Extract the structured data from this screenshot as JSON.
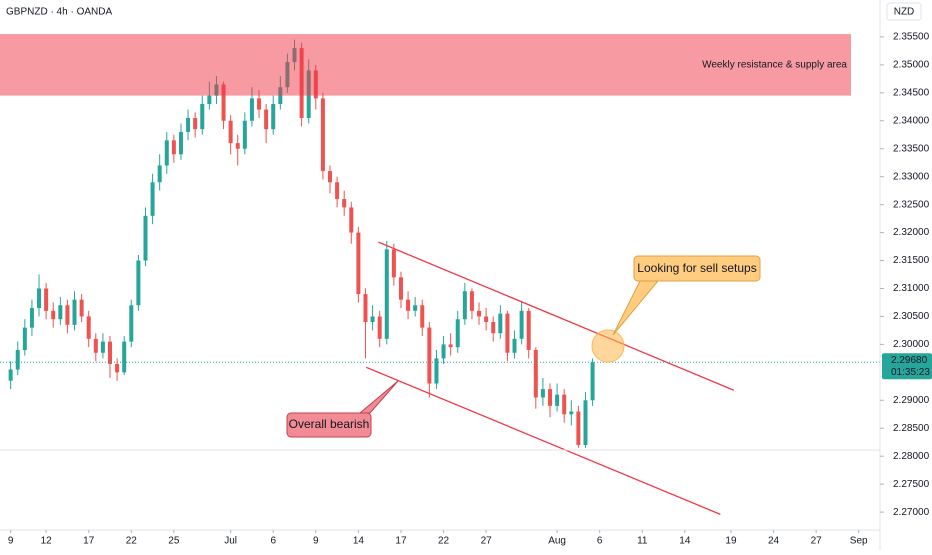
{
  "chart_data": {
    "type": "candlestick",
    "title": "GBPNZD · 4h · OANDA",
    "currency": "NZD",
    "up_color": "#26a69a",
    "down_color": "#ef5350",
    "grid": false,
    "xlim": [
      -1.5,
      122.5
    ],
    "xticks": [
      {
        "value": 0,
        "label": "9"
      },
      {
        "value": 5,
        "label": "12"
      },
      {
        "value": 11,
        "label": "17"
      },
      {
        "value": 17,
        "label": "22"
      },
      {
        "value": 23,
        "label": "25"
      },
      {
        "value": 31,
        "label": "Jul"
      },
      {
        "value": 37,
        "label": "6"
      },
      {
        "value": 43,
        "label": "9"
      },
      {
        "value": 49,
        "label": "14"
      },
      {
        "value": 55,
        "label": "17"
      },
      {
        "value": 61,
        "label": "22"
      },
      {
        "value": 67,
        "label": "27"
      },
      {
        "value": 77,
        "label": "Aug"
      },
      {
        "value": 83,
        "label": "6"
      },
      {
        "value": 89,
        "label": "11"
      },
      {
        "value": 95,
        "label": "14"
      },
      {
        "value": 101.5,
        "label": "19"
      },
      {
        "value": 107.5,
        "label": "24"
      },
      {
        "value": 113.5,
        "label": "27"
      },
      {
        "value": 119.5,
        "label": "Sep"
      }
    ],
    "ylim": [
      2.2668,
      2.3616
    ],
    "yticks": [
      {
        "value": 2.355,
        "label": "2.35500"
      },
      {
        "value": 2.35,
        "label": "2.35000"
      },
      {
        "value": 2.345,
        "label": "2.34500"
      },
      {
        "value": 2.34,
        "label": "2.34000"
      },
      {
        "value": 2.335,
        "label": "2.33500"
      },
      {
        "value": 2.33,
        "label": "2.33000"
      },
      {
        "value": 2.325,
        "label": "2.32500"
      },
      {
        "value": 2.32,
        "label": "2.32000"
      },
      {
        "value": 2.315,
        "label": "2.31500"
      },
      {
        "value": 2.31,
        "label": "2.31000"
      },
      {
        "value": 2.305,
        "label": "2.30500"
      },
      {
        "value": 2.3,
        "label": "2.30000"
      },
      {
        "value": 2.29,
        "label": "2.29000"
      },
      {
        "value": 2.285,
        "label": "2.28500"
      },
      {
        "value": 2.28,
        "label": "2.28000"
      },
      {
        "value": 2.275,
        "label": "2.27500"
      },
      {
        "value": 2.27,
        "label": "2.27000"
      }
    ],
    "open": [
      2.2935,
      2.2955,
      2.299,
      2.303,
      2.3065,
      2.31,
      2.306,
      2.3045,
      2.307,
      2.3035,
      2.308,
      2.305,
      2.301,
      2.2985,
      2.3005,
      2.2965,
      2.295,
      2.3005,
      2.307,
      2.315,
      2.323,
      2.329,
      2.332,
      2.3365,
      2.334,
      2.338,
      2.3405,
      2.3385,
      2.343,
      2.3445,
      2.3465,
      2.34,
      2.336,
      2.335,
      2.34,
      2.344,
      2.342,
      2.3385,
      2.343,
      2.346,
      2.3505,
      2.353,
      2.3405,
      2.349,
      2.344,
      2.331,
      2.329,
      2.326,
      2.3245,
      2.32,
      2.309,
      2.304,
      2.305,
      2.301,
      2.317,
      2.312,
      2.308,
      2.306,
      2.307,
      2.303,
      2.293,
      2.2975,
      2.3,
      2.2995,
      2.3045,
      2.3095,
      2.306,
      2.305,
      2.304,
      2.302,
      2.3055,
      2.2985,
      2.301,
      2.306,
      2.299,
      2.2905,
      2.292,
      2.289,
      2.291,
      2.2875,
      2.288,
      2.282,
      2.29
    ],
    "high": [
      2.297,
      2.3005,
      2.3045,
      2.308,
      2.3125,
      2.311,
      2.3075,
      2.3085,
      2.308,
      2.3095,
      2.309,
      2.306,
      2.302,
      2.302,
      2.3015,
      2.2975,
      2.3015,
      2.308,
      2.316,
      2.3245,
      2.3305,
      2.334,
      2.338,
      2.3375,
      2.3395,
      2.342,
      2.3415,
      2.3445,
      2.347,
      2.348,
      2.347,
      2.341,
      2.3375,
      2.3415,
      2.346,
      2.3455,
      2.343,
      2.3445,
      2.348,
      2.352,
      2.3545,
      2.354,
      2.351,
      2.35,
      2.345,
      2.332,
      2.33,
      2.3275,
      2.3255,
      2.321,
      2.31,
      2.307,
      2.306,
      2.3185,
      2.318,
      2.313,
      2.3095,
      2.3085,
      2.308,
      2.304,
      2.299,
      2.3015,
      2.302,
      2.306,
      2.311,
      2.31,
      2.3075,
      2.3065,
      2.305,
      2.307,
      2.306,
      2.3025,
      2.3075,
      2.3065,
      2.2995,
      2.294,
      2.293,
      2.293,
      2.292,
      2.29,
      2.289,
      2.2915,
      2.2975
    ],
    "low": [
      2.292,
      2.2945,
      2.298,
      2.3015,
      2.305,
      2.3045,
      2.303,
      2.3035,
      2.302,
      2.3025,
      2.304,
      2.2995,
      2.297,
      2.2975,
      2.294,
      2.2935,
      2.2945,
      2.2995,
      2.306,
      2.314,
      2.3215,
      2.3275,
      2.3305,
      2.3325,
      2.333,
      2.3365,
      2.337,
      2.3375,
      2.342,
      2.343,
      2.3385,
      2.334,
      2.332,
      2.334,
      2.339,
      2.3405,
      2.336,
      2.3375,
      2.342,
      2.345,
      2.349,
      2.339,
      2.3395,
      2.342,
      2.3295,
      2.327,
      2.3245,
      2.323,
      2.318,
      2.3075,
      2.2975,
      2.3025,
      2.2995,
      2.3,
      2.3105,
      2.3065,
      2.3045,
      2.305,
      2.3015,
      2.2905,
      2.292,
      2.2965,
      2.298,
      2.2985,
      2.3035,
      2.3045,
      2.3035,
      2.3025,
      2.3005,
      2.301,
      2.297,
      2.2975,
      2.3,
      2.2975,
      2.2885,
      2.289,
      2.287,
      2.288,
      2.286,
      2.2855,
      2.2815,
      2.2815,
      2.289
    ],
    "close": [
      2.2955,
      2.299,
      2.303,
      2.3065,
      2.31,
      2.306,
      2.3045,
      2.307,
      2.3035,
      2.308,
      2.305,
      2.301,
      2.2985,
      2.3005,
      2.2965,
      2.295,
      2.3005,
      2.307,
      2.315,
      2.323,
      2.329,
      2.332,
      2.3365,
      2.334,
      2.338,
      2.3405,
      2.3385,
      2.343,
      2.3445,
      2.3465,
      2.34,
      2.336,
      2.335,
      2.34,
      2.344,
      2.342,
      2.3385,
      2.343,
      2.346,
      2.3505,
      2.353,
      2.3405,
      2.349,
      2.344,
      2.331,
      2.329,
      2.326,
      2.3245,
      2.32,
      2.309,
      2.304,
      2.305,
      2.301,
      2.317,
      2.312,
      2.308,
      2.306,
      2.307,
      2.303,
      2.293,
      2.2975,
      2.3,
      2.2995,
      2.3045,
      2.3095,
      2.306,
      2.305,
      2.304,
      2.302,
      2.3055,
      2.2985,
      2.301,
      2.306,
      2.299,
      2.2905,
      2.292,
      2.289,
      2.291,
      2.2875,
      2.288,
      2.282,
      2.29,
      2.2968
    ],
    "last_price": {
      "value": 2.2968,
      "label": "2.29680"
    },
    "countdown": "01:35:23",
    "zone": {
      "label": "Weekly resistance & supply area",
      "from": 2.3445,
      "to": 2.3555,
      "color": "rgba(242,54,69,0.5)"
    },
    "lines": [
      {
        "x": [
          51.8,
          101.9
        ],
        "y": [
          2.3183,
          2.2918
        ],
        "color": "#f23645"
      },
      {
        "x": [
          50.1,
          100
        ],
        "y": [
          2.2959,
          2.2696
        ],
        "color": "#f23645"
      }
    ],
    "callouts": [
      "Looking for sell setups",
      "Overall bearish"
    ]
  }
}
